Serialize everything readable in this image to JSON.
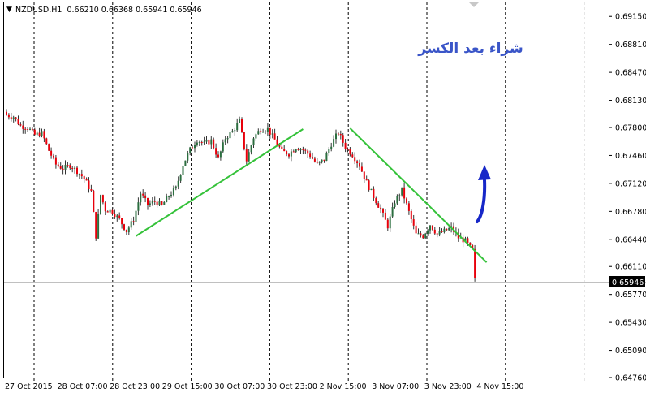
{
  "header": {
    "menu_glyph": "▼",
    "title": "NZDUSD,H1  0.66210 0.66368 0.65941 0.65946"
  },
  "annotation": {
    "text": "شراء بعد الكسر"
  },
  "colors": {
    "bull": "#2b6e3f",
    "bear": "#e8000b",
    "wick": "#333333",
    "trendline": "#35c23a",
    "arrow": "#1727c8",
    "annotation": "#3a55c8",
    "grid": "#000000",
    "current_price_line": "#c0c0c0"
  },
  "chart_data": {
    "type": "candlestick",
    "symbol": "NZDUSD",
    "timeframe": "H1",
    "ohlc_header": {
      "open": 0.6621,
      "high": 0.66368,
      "low": 0.65941,
      "close": 0.65946
    },
    "y_ticks": [
      "0.69150",
      "0.68810",
      "0.68470",
      "0.68130",
      "0.67800",
      "0.67460",
      "0.67120",
      "0.66780",
      "0.66440",
      "0.66110",
      "0.65770",
      "0.65430",
      "0.65090",
      "0.64760"
    ],
    "ylim": [
      0.6476,
      0.6932
    ],
    "current_price": "0.65946",
    "x_ticks": [
      "27 Oct 2015",
      "28 Oct 07:00",
      "28 Oct 23:00",
      "29 Oct 15:00",
      "30 Oct 07:00",
      "30 Oct 23:00",
      "2 Nov 15:00",
      "3 Nov 07:00",
      "3 Nov 23:00",
      "4 Nov 15:00"
    ],
    "grid": "vertical dashed",
    "close_path": [
      [
        0,
        0.6795
      ],
      [
        3,
        0.6793
      ],
      [
        6,
        0.6782
      ],
      [
        9,
        0.678
      ],
      [
        12,
        0.6771
      ],
      [
        15,
        0.6773
      ],
      [
        18,
        0.6752
      ],
      [
        21,
        0.6735
      ],
      [
        24,
        0.673
      ],
      [
        27,
        0.6734
      ],
      [
        30,
        0.6727
      ],
      [
        33,
        0.6718
      ],
      [
        36,
        0.6702
      ],
      [
        38,
        0.6648
      ],
      [
        40,
        0.6698
      ],
      [
        42,
        0.668
      ],
      [
        45,
        0.6678
      ],
      [
        48,
        0.6668
      ],
      [
        51,
        0.6654
      ],
      [
        54,
        0.6668
      ],
      [
        57,
        0.67
      ],
      [
        60,
        0.6686
      ],
      [
        63,
        0.669
      ],
      [
        66,
        0.6685
      ],
      [
        69,
        0.6697
      ],
      [
        72,
        0.6706
      ],
      [
        75,
        0.6735
      ],
      [
        78,
        0.6753
      ],
      [
        81,
        0.6765
      ],
      [
        84,
        0.676
      ],
      [
        87,
        0.6764
      ],
      [
        90,
        0.6742
      ],
      [
        93,
        0.6767
      ],
      [
        96,
        0.6775
      ],
      [
        99,
        0.6788
      ],
      [
        102,
        0.674
      ],
      [
        105,
        0.6768
      ],
      [
        108,
        0.6778
      ],
      [
        111,
        0.6778
      ],
      [
        114,
        0.6765
      ],
      [
        117,
        0.6751
      ],
      [
        120,
        0.6748
      ],
      [
        123,
        0.6756
      ],
      [
        126,
        0.6753
      ],
      [
        129,
        0.6746
      ],
      [
        132,
        0.6735
      ],
      [
        135,
        0.6741
      ],
      [
        138,
        0.676
      ],
      [
        141,
        0.6774
      ],
      [
        144,
        0.6756
      ],
      [
        147,
        0.6747
      ],
      [
        150,
        0.6734
      ],
      [
        153,
        0.6713
      ],
      [
        156,
        0.6696
      ],
      [
        159,
        0.668
      ],
      [
        162,
        0.666
      ],
      [
        165,
        0.669
      ],
      [
        168,
        0.6704
      ],
      [
        171,
        0.6677
      ],
      [
        174,
        0.665
      ],
      [
        177,
        0.6648
      ],
      [
        180,
        0.6662
      ],
      [
        183,
        0.665
      ],
      [
        186,
        0.6654
      ],
      [
        189,
        0.6658
      ],
      [
        192,
        0.6646
      ],
      [
        195,
        0.6642
      ],
      [
        198,
        0.663
      ],
      [
        199,
        0.6595
      ]
    ],
    "trendlines": [
      {
        "from": [
          55,
          0.6648
        ],
        "to": [
          126,
          0.6778
        ]
      },
      {
        "from": [
          146,
          0.6779
        ],
        "to": [
          204,
          0.6616
        ]
      }
    ]
  }
}
